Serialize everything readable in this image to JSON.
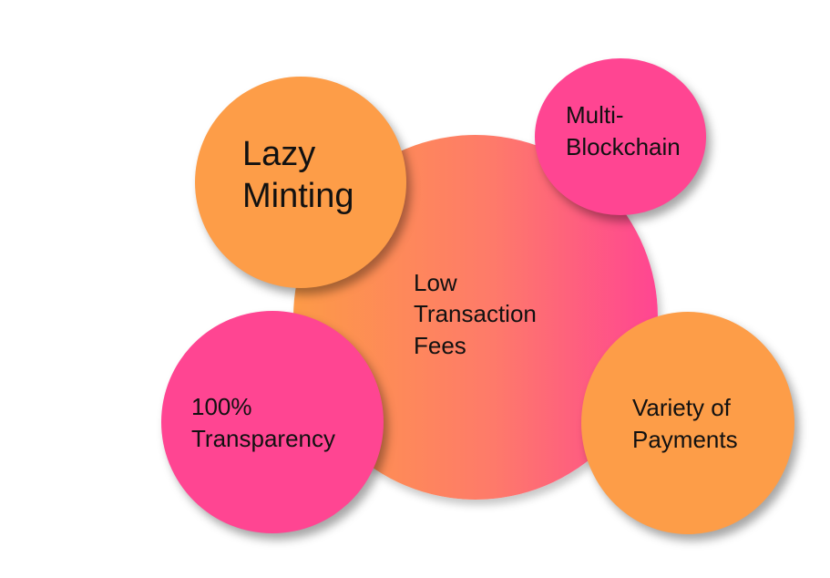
{
  "colors": {
    "orange": "#fd9d48",
    "pink": "#ff4592",
    "gradient_start": "#fd9a47",
    "gradient_end": "#ff4592"
  },
  "features": {
    "center": {
      "lines": [
        "Low",
        "Transaction",
        "Fees"
      ]
    },
    "lazy_minting": {
      "lines": [
        "Lazy",
        "Minting"
      ]
    },
    "multi_blockchain": {
      "lines": [
        "Multi-",
        "Blockchain"
      ]
    },
    "transparency": {
      "lines": [
        "100%",
        "Transparency"
      ]
    },
    "variety": {
      "lines": [
        "Variety of",
        "Payments"
      ]
    }
  }
}
